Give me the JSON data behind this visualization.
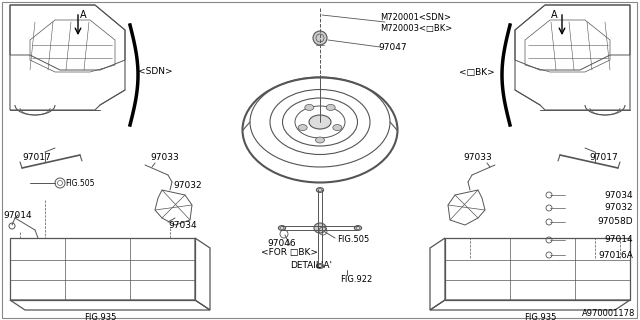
{
  "background_color": "#ffffff",
  "line_color": "#555555",
  "text_color": "#000000",
  "fig_width": 6.4,
  "fig_height": 3.2,
  "dpi": 100,
  "labels": {
    "M720001": "M720001<SDN>",
    "M720003": "M720003<□BK>",
    "97047": "97047",
    "SDN": "<SDN>",
    "DBK": "<□BK>",
    "97017L": "97017",
    "97017R": "97017",
    "97033L": "97033",
    "97033R": "97033",
    "97032L": "97032",
    "97032R": "97032",
    "97034L": "97034",
    "97034R": "97034",
    "97014L": "97014",
    "97014R": "97014",
    "97058D": "97058D",
    "97016A": "97016A",
    "97046": "97046",
    "FOR_DBK": "<FOR □BK>",
    "FIG505L": "FIG.505",
    "FIG505R": "FIG.505",
    "FIG935L": "FIG.935",
    "FIG935R": "FIG.935",
    "FIG922": "FIG.922",
    "DETAIL_A": "DETAIL'A'",
    "partnum": "A970001178",
    "A_left": "A",
    "A_right": "A"
  }
}
